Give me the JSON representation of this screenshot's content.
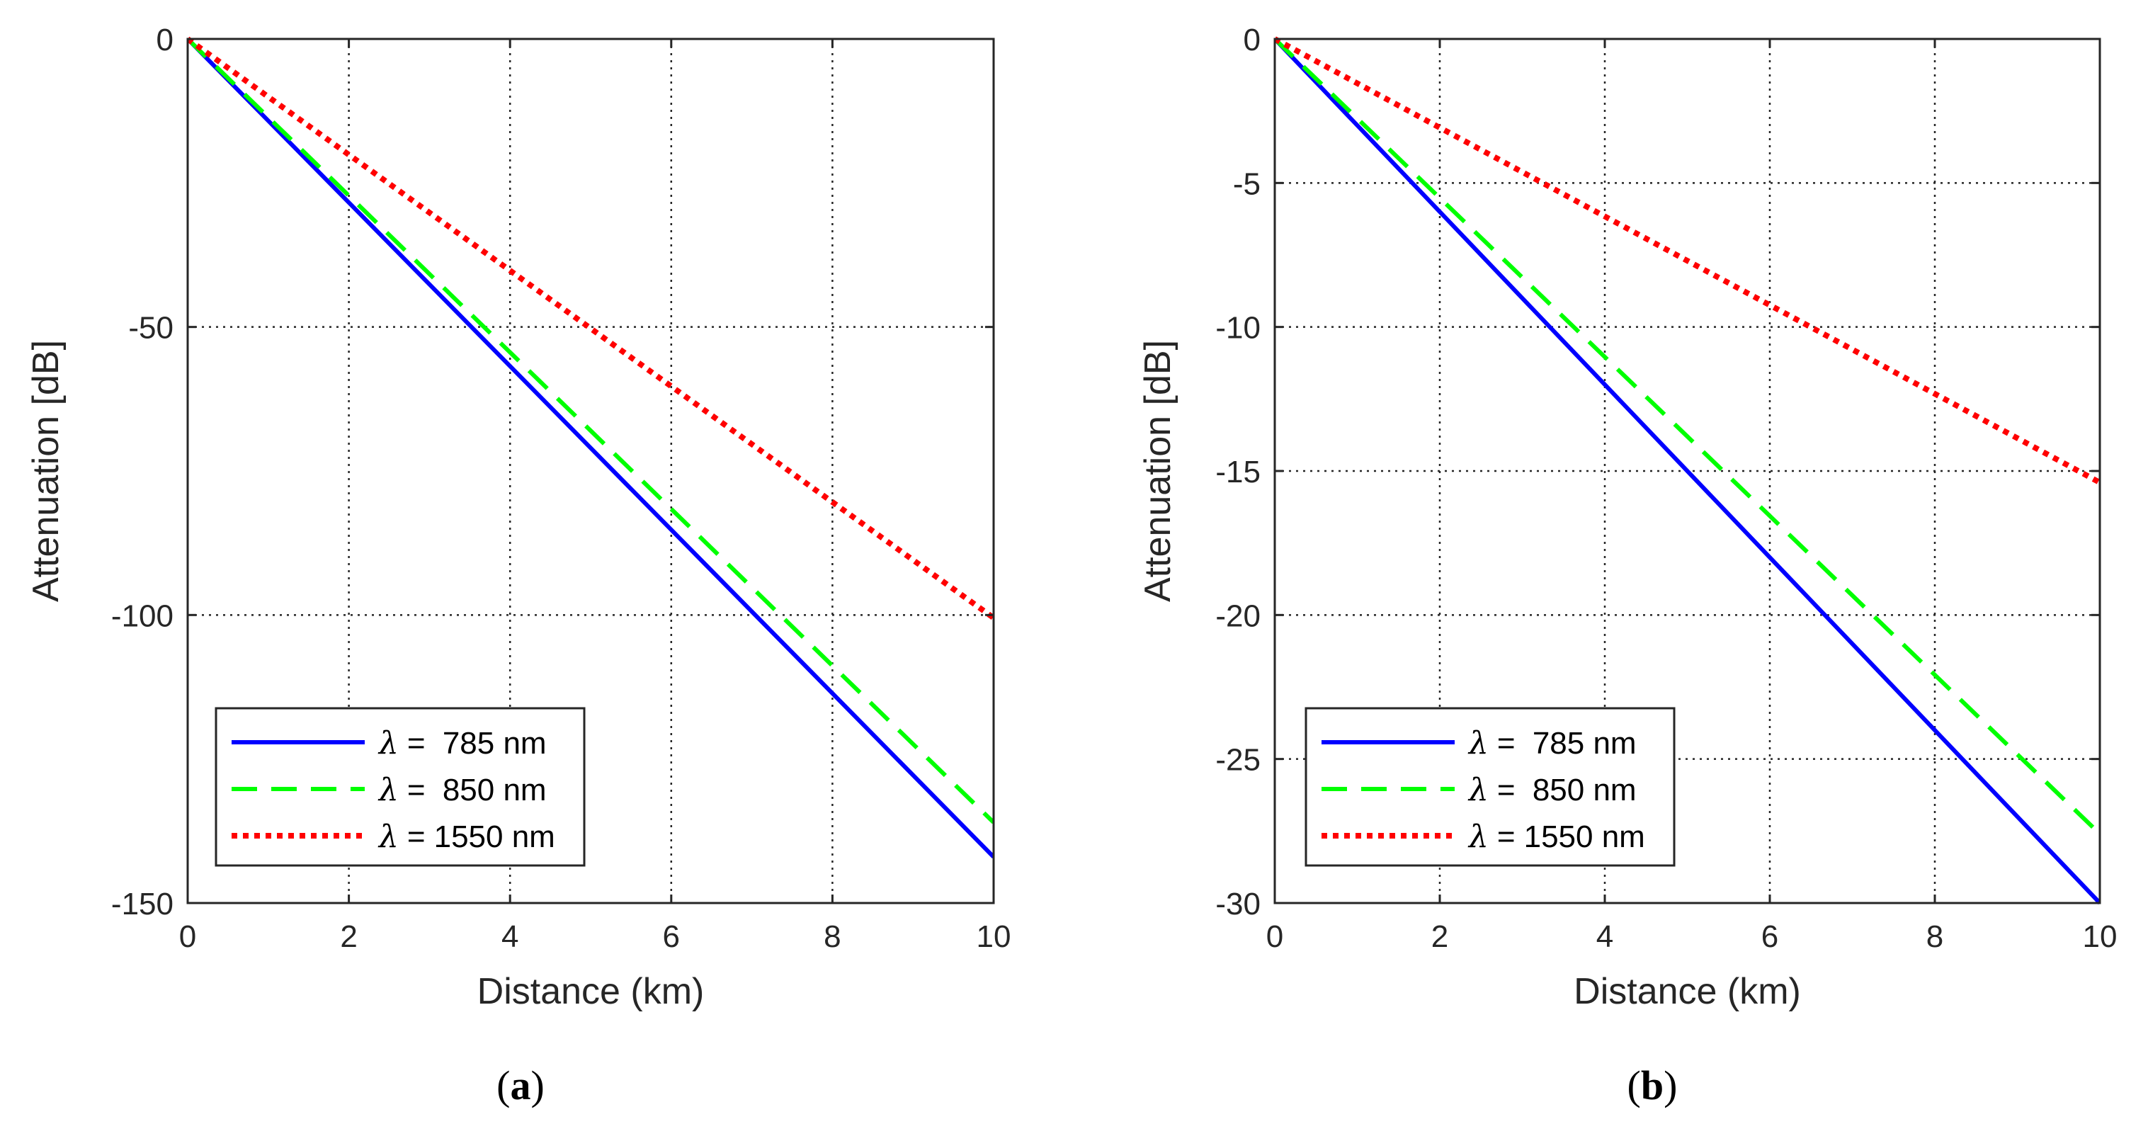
{
  "chart_data": [
    {
      "type": "line",
      "panel_label": "a",
      "caption_open": "(",
      "caption_close": ")",
      "xlabel": "Distance (km)",
      "ylabel": "Attenuation [dB]",
      "xlim": [
        0,
        10
      ],
      "ylim": [
        -150,
        0
      ],
      "xticks": [
        0,
        2,
        4,
        6,
        8,
        10
      ],
      "yticks": [
        0,
        -50,
        -100,
        -150
      ],
      "xtick_labels": [
        "0",
        "2",
        "4",
        "6",
        "8",
        "10"
      ],
      "ytick_labels": [
        "0",
        "-50",
        "-100",
        "-150"
      ],
      "grid": true,
      "legend_location": "bottom-left",
      "series": [
        {
          "name": "785 nm",
          "symbol": "λ",
          "eq": "=",
          "label_text": " 785 nm",
          "color": "#0000ff",
          "style": "solid",
          "x": [
            0,
            10
          ],
          "y": [
            0,
            -142
          ]
        },
        {
          "name": "850 nm",
          "symbol": "λ",
          "eq": "=",
          "label_text": " 850 nm",
          "color": "#00ff00",
          "style": "dashed",
          "x": [
            0,
            10
          ],
          "y": [
            0,
            -136
          ]
        },
        {
          "name": "1550 nm",
          "symbol": "λ",
          "eq": "=",
          "label_text": "1550 nm",
          "color": "#ff0000",
          "style": "dotted",
          "x": [
            0,
            10
          ],
          "y": [
            0,
            -100.5
          ]
        }
      ]
    },
    {
      "type": "line",
      "panel_label": "b",
      "caption_open": "(",
      "caption_close": ")",
      "xlabel": "Distance (km)",
      "ylabel": "Attenuation [dB]",
      "xlim": [
        0,
        10
      ],
      "ylim": [
        -30,
        0
      ],
      "xticks": [
        0,
        2,
        4,
        6,
        8,
        10
      ],
      "yticks": [
        0,
        -5,
        -10,
        -15,
        -20,
        -25,
        -30
      ],
      "xtick_labels": [
        "0",
        "2",
        "4",
        "6",
        "8",
        "10"
      ],
      "ytick_labels": [
        "0",
        "-5",
        "-10",
        "-15",
        "-20",
        "-25",
        "-30"
      ],
      "grid": true,
      "legend_location": "bottom-left",
      "series": [
        {
          "name": "785 nm",
          "symbol": "λ",
          "eq": "=",
          "label_text": " 785 nm",
          "color": "#0000ff",
          "style": "solid",
          "x": [
            0,
            10
          ],
          "y": [
            0,
            -30
          ]
        },
        {
          "name": "850 nm",
          "symbol": "λ",
          "eq": "=",
          "label_text": " 850 nm",
          "color": "#00ff00",
          "style": "dashed",
          "x": [
            0,
            10
          ],
          "y": [
            0,
            -27.6
          ]
        },
        {
          "name": "1550 nm",
          "symbol": "λ",
          "eq": "=",
          "label_text": "1550 nm",
          "color": "#ff0000",
          "style": "dotted",
          "x": [
            0,
            10
          ],
          "y": [
            0,
            -15.4
          ]
        }
      ]
    }
  ]
}
